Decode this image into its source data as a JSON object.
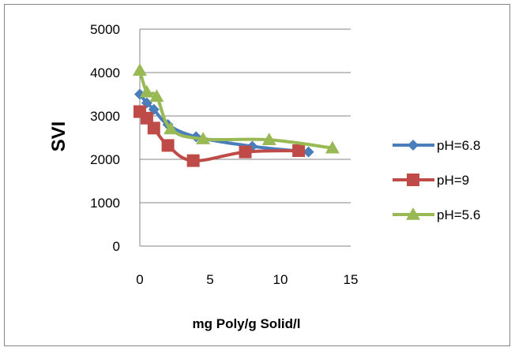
{
  "chart_data": {
    "type": "line",
    "title": "",
    "xlabel": "mg Poly/g Solid/l",
    "ylabel": "SVI",
    "xlim": [
      0,
      15
    ],
    "ylim": [
      0,
      5000
    ],
    "xticks": [
      0,
      5,
      10,
      15
    ],
    "yticks": [
      0,
      1000,
      2000,
      3000,
      4000,
      5000
    ],
    "grid": "horizontal",
    "legend_position": "right",
    "series": [
      {
        "name": "pH=6.8",
        "color": "#4A7EBB",
        "marker": "diamond",
        "x": [
          0,
          0.5,
          1,
          2,
          4,
          8,
          12
        ],
        "y": [
          3500,
          3300,
          3150,
          2800,
          2520,
          2300,
          2170
        ]
      },
      {
        "name": "pH=9",
        "color": "#BE4B48",
        "marker": "square",
        "x": [
          0,
          0.5,
          1,
          2,
          3.8,
          7.5,
          11.3
        ],
        "y": [
          3100,
          2950,
          2720,
          2320,
          1970,
          2170,
          2200
        ]
      },
      {
        "name": "pH=5.6",
        "color": "#98B954",
        "marker": "triangle",
        "x": [
          0,
          0.5,
          1.2,
          2.2,
          4.5,
          9.2,
          13.7
        ],
        "y": [
          4050,
          3550,
          3450,
          2700,
          2470,
          2450,
          2260
        ]
      }
    ]
  }
}
